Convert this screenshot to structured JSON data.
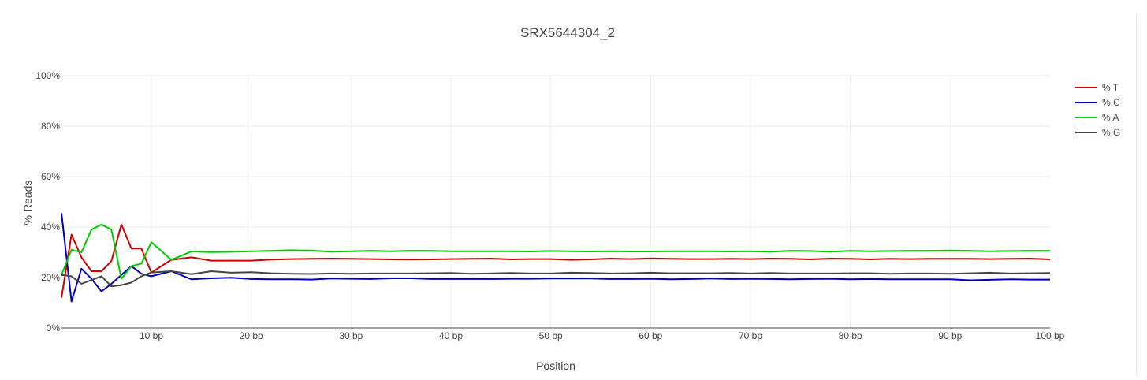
{
  "chart_data": {
    "type": "line",
    "title": "SRX5644304_2",
    "xlabel": "Position",
    "ylabel": "% Reads",
    "xlim": [
      1,
      100
    ],
    "ylim": [
      0,
      100
    ],
    "x_ticks": [
      10,
      20,
      30,
      40,
      50,
      60,
      70,
      80,
      90,
      100
    ],
    "x_tick_labels": [
      "10 bp",
      "20 bp",
      "30 bp",
      "40 bp",
      "50 bp",
      "60 bp",
      "70 bp",
      "80 bp",
      "90 bp",
      "100 bp"
    ],
    "y_ticks": [
      0,
      20,
      40,
      60,
      80,
      100
    ],
    "y_tick_labels": [
      "0%",
      "20%",
      "40%",
      "60%",
      "80%",
      "100%"
    ],
    "grid": true,
    "legend_position": "top-right",
    "x": [
      1,
      2,
      3,
      4,
      5,
      6,
      7,
      8,
      9,
      10,
      12,
      14,
      16,
      18,
      20,
      22,
      24,
      26,
      28,
      30,
      32,
      34,
      36,
      38,
      40,
      42,
      44,
      46,
      48,
      50,
      52,
      54,
      56,
      58,
      60,
      62,
      64,
      66,
      68,
      70,
      72,
      74,
      76,
      78,
      80,
      82,
      84,
      86,
      88,
      90,
      92,
      94,
      96,
      98,
      100
    ],
    "series": [
      {
        "name": "% T",
        "color": "#cc0000",
        "values": [
          12,
          37,
          28,
          22.5,
          22.5,
          26.5,
          41,
          31.5,
          31.5,
          22,
          27,
          28,
          26.7,
          26.7,
          26.7,
          27.1,
          27.3,
          27.4,
          27.5,
          27.4,
          27.3,
          27.2,
          27.1,
          27.2,
          27.3,
          27.4,
          27.5,
          27.2,
          27.3,
          27.3,
          27,
          27.2,
          27.5,
          27.3,
          27.6,
          27.4,
          27.3,
          27.3,
          27.4,
          27.3,
          27.5,
          27.4,
          27.2,
          27.5,
          27.4,
          27.2,
          27.4,
          27.3,
          27.4,
          27.4,
          27.4,
          27.3,
          27.4,
          27.5,
          27.2
        ]
      },
      {
        "name": "% C",
        "color": "#0000bb",
        "values": [
          45.5,
          10.5,
          23.5,
          19.5,
          14.5,
          17.5,
          21,
          24.5,
          21.5,
          20.5,
          22.5,
          19.3,
          19.7,
          19.9,
          19.4,
          19.3,
          19.3,
          19.2,
          19.6,
          19.5,
          19.4,
          19.7,
          19.7,
          19.4,
          19.4,
          19.4,
          19.4,
          19.5,
          19.5,
          19.6,
          19.6,
          19.6,
          19.4,
          19.4,
          19.5,
          19.3,
          19.4,
          19.6,
          19.4,
          19.5,
          19.4,
          19.3,
          19.4,
          19.5,
          19.3,
          19.4,
          19.3,
          19.3,
          19.3,
          19.3,
          18.9,
          19.1,
          19.3,
          19.2,
          19.2
        ]
      },
      {
        "name": "% A",
        "color": "#00cc00",
        "values": [
          21,
          31,
          30,
          39,
          41,
          39,
          19.5,
          24.5,
          25.5,
          34,
          27,
          30.3,
          30.1,
          30.2,
          30.4,
          30.6,
          30.8,
          30.7,
          30.2,
          30.4,
          30.6,
          30.4,
          30.6,
          30.6,
          30.4,
          30.4,
          30.4,
          30.4,
          30.3,
          30.5,
          30.4,
          30.3,
          30.4,
          30.3,
          30.3,
          30.4,
          30.4,
          30.4,
          30.3,
          30.4,
          30.2,
          30.6,
          30.5,
          30.2,
          30.6,
          30.4,
          30.5,
          30.6,
          30.6,
          30.7,
          30.6,
          30.4,
          30.5,
          30.6,
          30.6
        ]
      },
      {
        "name": "% G",
        "color": "#444444",
        "values": [
          21,
          20.5,
          17.5,
          19,
          20.5,
          16.5,
          17,
          18,
          20.5,
          22,
          22.5,
          21.3,
          22.5,
          21.9,
          22.1,
          21.7,
          21.5,
          21.4,
          21.6,
          21.5,
          21.6,
          21.6,
          21.6,
          21.7,
          21.8,
          21.5,
          21.6,
          21.8,
          21.6,
          21.6,
          21.9,
          21.8,
          21.6,
          21.7,
          21.9,
          21.7,
          21.7,
          21.7,
          21.8,
          21.6,
          21.8,
          21.6,
          21.6,
          21.6,
          21.7,
          21.7,
          21.5,
          21.6,
          21.6,
          21.5,
          21.7,
          21.9,
          21.6,
          21.7,
          21.8
        ]
      }
    ]
  }
}
